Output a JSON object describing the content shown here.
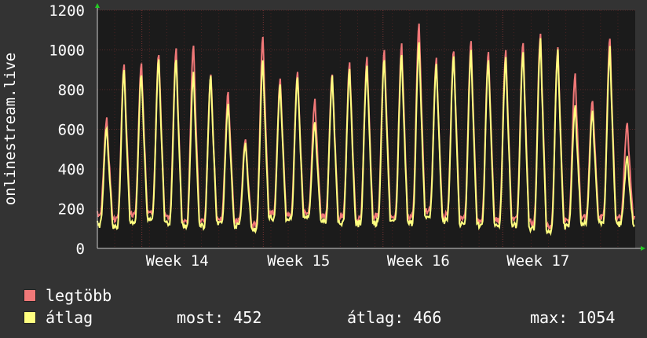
{
  "chart_data": {
    "type": "line",
    "ylabel": "onlinestream.live",
    "y_ticks": [
      0,
      200,
      400,
      600,
      800,
      1000,
      1200
    ],
    "ylim": [
      0,
      1200
    ],
    "x_ticks": [
      "Week 14",
      "Week 15",
      "Week 16",
      "Week 17"
    ],
    "grid": true,
    "background": "#1b1b1b",
    "days": 31,
    "series": [
      {
        "name": "legtöbb",
        "color": "#f07878",
        "daily_peak": [
          655,
          935,
          935,
          985,
          1000,
          1025,
          880,
          790,
          555,
          1065,
          845,
          900,
          750,
          880,
          930,
          960,
          995,
          1035,
          1130,
          950,
          1005,
          1045,
          1000,
          1000,
          1040,
          1090,
          1005,
          870,
          750,
          1065,
          630
        ],
        "daily_low": [
          170,
          150,
          170,
          180,
          160,
          130,
          140,
          150,
          140,
          120,
          180,
          170,
          180,
          160,
          160,
          150,
          160,
          170,
          160,
          190,
          170,
          150,
          140,
          140,
          150,
          130,
          110,
          140,
          150,
          160,
          150
        ]
      },
      {
        "name": "átlag",
        "color": "#ffff80",
        "daily_peak": [
          610,
          895,
          880,
          955,
          960,
          880,
          870,
          730,
          530,
          950,
          820,
          870,
          640,
          860,
          900,
          930,
          960,
          985,
          1030,
          940,
          970,
          1000,
          960,
          960,
          1000,
          1050,
          995,
          720,
          690,
          1010,
          455
        ],
        "daily_low": [
          120,
          110,
          130,
          150,
          130,
          110,
          115,
          120,
          115,
          100,
          150,
          140,
          150,
          130,
          130,
          125,
          130,
          140,
          130,
          160,
          140,
          125,
          115,
          115,
          120,
          100,
          85,
          110,
          125,
          130,
          125
        ]
      }
    ]
  },
  "legend": {
    "max_label": "legtöbb",
    "avg_label": "átlag",
    "max_color": "#f07878",
    "avg_color": "#ffff80",
    "stats": {
      "now": "most: 452",
      "avg": "átlag: 466",
      "max": "max: 1054"
    }
  }
}
